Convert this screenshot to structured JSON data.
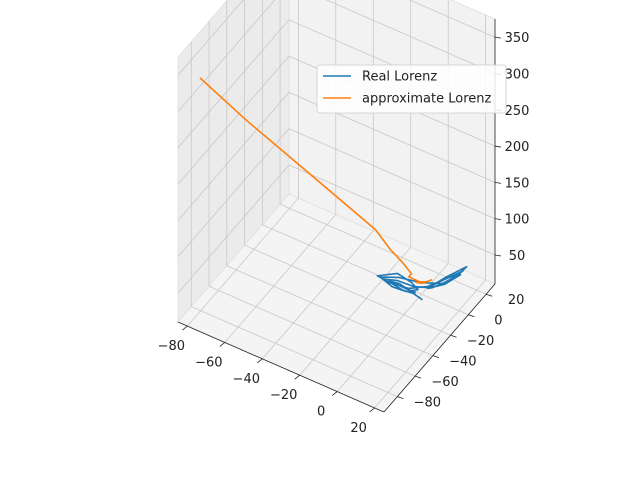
{
  "chart_data": {
    "type": "line",
    "projection": "3d",
    "title": "",
    "xlabel": "",
    "ylabel": "",
    "zlabel": "",
    "xlim": [
      -85,
      25
    ],
    "ylim": [
      -95,
      30
    ],
    "zlim": [
      10,
      375
    ],
    "x_ticks": [
      -80,
      -60,
      -40,
      -20,
      0,
      20
    ],
    "y_ticks": [
      -80,
      -60,
      -40,
      -20,
      0,
      20
    ],
    "z_ticks": [
      50,
      100,
      150,
      200,
      250,
      300,
      350
    ],
    "grid": true,
    "legend_location": "upper right",
    "series": [
      {
        "name": "Real Lorenz",
        "color": "#1f77b4",
        "description_points": [
          [
            0,
            1,
            1
          ],
          [
            -8,
            -8,
            27
          ],
          [
            -12,
            -12,
            32
          ],
          [
            -8,
            -10,
            28
          ],
          [
            -4,
            -6,
            20
          ],
          [
            -2,
            -3,
            15
          ],
          [
            -2,
            -4,
            14
          ],
          [
            -6,
            -8,
            20
          ],
          [
            -10,
            -11,
            28
          ],
          [
            -14,
            -14,
            35
          ],
          [
            -9,
            -8,
            30
          ],
          [
            -3,
            -2,
            20
          ],
          [
            3,
            5,
            15
          ],
          [
            9,
            10,
            24
          ],
          [
            14,
            14,
            35
          ],
          [
            9,
            8,
            30
          ],
          [
            4,
            3,
            22
          ],
          [
            2,
            3,
            16
          ],
          [
            6,
            8,
            18
          ],
          [
            11,
            12,
            28
          ],
          [
            15,
            15,
            38
          ],
          [
            10,
            7,
            33
          ],
          [
            3,
            0,
            24
          ],
          [
            -4,
            -6,
            22
          ],
          [
            -11,
            -12,
            30
          ],
          [
            -16,
            -16,
            40
          ],
          [
            -10,
            -6,
            36
          ],
          [
            -4,
            -3,
            26
          ],
          [
            -1,
            -2,
            18
          ],
          [
            -5,
            -7,
            18
          ],
          [
            -10,
            -12,
            26
          ],
          [
            -15,
            -15,
            38
          ],
          [
            -9,
            -7,
            33
          ],
          [
            -1,
            2,
            22
          ],
          [
            7,
            9,
            20
          ],
          [
            13,
            13,
            32
          ],
          [
            16,
            17,
            42
          ],
          [
            10,
            6,
            36
          ],
          [
            6,
            5,
            26
          ],
          [
            3,
            3,
            18
          ],
          [
            8,
            9,
            20
          ],
          [
            14,
            15,
            32
          ]
        ]
      },
      {
        "name": "approximate Lorenz",
        "color": "#ff7f0e",
        "description_points": [
          [
            -78,
            -85,
            340
          ],
          [
            -60,
            -70,
            280
          ],
          [
            -40,
            -50,
            210
          ],
          [
            -25,
            -32,
            150
          ],
          [
            -15,
            -20,
            110
          ],
          [
            -10,
            -14,
            80
          ],
          [
            -6,
            -9,
            60
          ],
          [
            -4,
            -7,
            50
          ],
          [
            -3,
            -5,
            42
          ],
          [
            -4,
            -6,
            38
          ],
          [
            -2,
            -4,
            34
          ],
          [
            0,
            -2,
            30
          ],
          [
            2,
            1,
            28
          ],
          [
            4,
            3,
            30
          ],
          [
            2,
            2,
            27
          ],
          [
            0,
            0,
            25
          ],
          [
            -2,
            -2,
            27
          ],
          [
            -1,
            -1,
            26
          ]
        ]
      }
    ]
  },
  "colors": {
    "real": "#1f77b4",
    "approx": "#ff7f0e",
    "pane": "#f2f2f2",
    "grid": "#c8c8c8"
  }
}
